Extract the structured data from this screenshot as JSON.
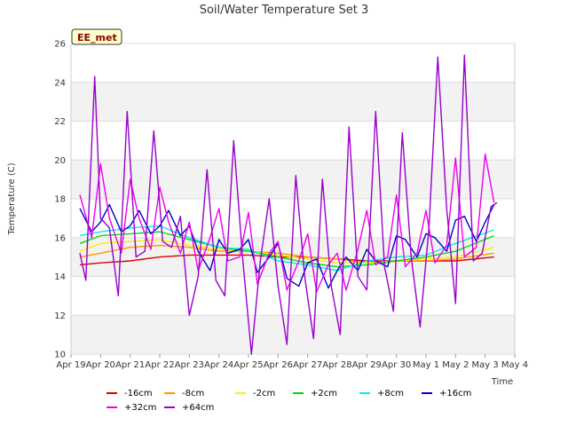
{
  "chart_data": {
    "type": "line",
    "title": "Soil/Water Temperature Set 3",
    "xlabel": "Time",
    "ylabel": "Temperature (C)",
    "badge": "EE_met",
    "ylim": [
      10,
      26
    ],
    "yticks": [
      10,
      12,
      14,
      16,
      18,
      20,
      22,
      24,
      26
    ],
    "xlim": [
      0,
      15
    ],
    "xticks": [
      {
        "x": 0,
        "label": "Apr 19"
      },
      {
        "x": 1,
        "label": "Apr 20"
      },
      {
        "x": 2,
        "label": "Apr 21"
      },
      {
        "x": 3,
        "label": "Apr 22"
      },
      {
        "x": 4,
        "label": "Apr 23"
      },
      {
        "x": 5,
        "label": "Apr 24"
      },
      {
        "x": 6,
        "label": "Apr 25"
      },
      {
        "x": 7,
        "label": "Apr 26"
      },
      {
        "x": 8,
        "label": "Apr 27"
      },
      {
        "x": 9,
        "label": "Apr 28"
      },
      {
        "x": 10,
        "label": "Apr 29"
      },
      {
        "x": 11,
        "label": "Apr 30"
      },
      {
        "x": 12,
        "label": "May 1"
      },
      {
        "x": 13,
        "label": "May 2"
      },
      {
        "x": 14,
        "label": "May 3"
      },
      {
        "x": 15,
        "label": "May 4"
      }
    ],
    "grid": "horizontal bands",
    "legend_position": "bottom",
    "series": [
      {
        "name": "-16cm",
        "color": "#dd0000",
        "x": [
          0.3,
          1,
          2,
          3,
          4,
          5,
          6,
          7,
          8,
          9,
          10,
          11,
          12,
          13,
          14.3
        ],
        "y": [
          14.6,
          14.7,
          14.8,
          15.0,
          15.1,
          15.1,
          15.1,
          15.0,
          15.0,
          14.9,
          14.8,
          14.8,
          14.8,
          14.8,
          15.0
        ]
      },
      {
        "name": "-8cm",
        "color": "#ff9900",
        "x": [
          0.3,
          1,
          2,
          3,
          4,
          5,
          6,
          7,
          8,
          9,
          10,
          11,
          12,
          13,
          14.3
        ],
        "y": [
          15.0,
          15.2,
          15.5,
          15.6,
          15.5,
          15.3,
          15.3,
          15.2,
          15.0,
          14.9,
          14.7,
          14.8,
          14.8,
          14.9,
          15.2
        ]
      },
      {
        "name": "-2cm",
        "color": "#ffee00",
        "x": [
          0.3,
          1,
          2,
          3,
          4,
          5,
          6,
          7,
          8,
          9,
          10,
          11,
          12,
          13,
          14.3
        ],
        "y": [
          15.3,
          15.7,
          15.8,
          15.9,
          15.6,
          15.4,
          15.3,
          15.1,
          14.9,
          14.7,
          14.7,
          14.8,
          14.9,
          15.0,
          15.5
        ]
      },
      {
        "name": "+2cm",
        "color": "#00dd00",
        "x": [
          0.3,
          1,
          2,
          3,
          4,
          5,
          6,
          7,
          8,
          9,
          10,
          11,
          12,
          13,
          14.3
        ],
        "y": [
          15.7,
          16.1,
          16.2,
          16.3,
          15.9,
          15.5,
          15.3,
          15.0,
          14.7,
          14.5,
          14.6,
          14.8,
          15.0,
          15.3,
          16.1
        ]
      },
      {
        "name": "+8cm",
        "color": "#00eeee",
        "x": [
          0.3,
          1,
          2,
          3,
          4,
          5,
          6,
          7,
          8,
          9,
          10,
          11,
          12,
          13,
          14.3
        ],
        "y": [
          16.1,
          16.3,
          16.5,
          16.6,
          16.0,
          15.5,
          15.4,
          14.8,
          14.6,
          14.3,
          14.8,
          15.0,
          15.1,
          15.7,
          16.4
        ]
      },
      {
        "name": "+16cm",
        "color": "#0000cc",
        "x": [
          0.3,
          0.7,
          1.0,
          1.3,
          1.7,
          2.0,
          2.3,
          2.7,
          3.0,
          3.3,
          3.7,
          4.0,
          4.3,
          4.7,
          5.0,
          5.3,
          5.7,
          6.0,
          6.3,
          6.7,
          7.0,
          7.3,
          7.7,
          8.0,
          8.3,
          8.7,
          9.0,
          9.3,
          9.7,
          10.0,
          10.3,
          10.7,
          11.0,
          11.3,
          11.7,
          12.0,
          12.3,
          12.7,
          13.0,
          13.3,
          13.7,
          14.0,
          14.3
        ],
        "y": [
          17.5,
          16.3,
          16.8,
          17.7,
          16.3,
          16.6,
          17.4,
          16.2,
          16.6,
          17.4,
          16.1,
          16.6,
          15.3,
          14.3,
          15.9,
          15.2,
          15.4,
          15.9,
          14.2,
          15.0,
          15.7,
          13.9,
          13.5,
          14.7,
          14.9,
          13.4,
          14.3,
          15.0,
          14.3,
          15.4,
          14.8,
          14.5,
          16.1,
          15.9,
          15.0,
          16.2,
          16.0,
          15.3,
          16.9,
          17.1,
          15.8,
          16.8,
          17.7
        ]
      },
      {
        "name": "+32cm",
        "color": "#ee00ee",
        "x": [
          0.3,
          0.7,
          1.0,
          1.3,
          1.7,
          2.0,
          2.3,
          2.7,
          3.0,
          3.3,
          3.7,
          4.0,
          4.3,
          4.7,
          5.0,
          5.3,
          5.7,
          6.0,
          6.3,
          6.7,
          7.0,
          7.3,
          7.7,
          8.0,
          8.3,
          8.7,
          9.0,
          9.3,
          9.7,
          10.0,
          10.3,
          10.7,
          11.0,
          11.3,
          11.7,
          12.0,
          12.3,
          12.7,
          13.0,
          13.3,
          13.7,
          14.0,
          14.3
        ],
        "y": [
          18.2,
          16.0,
          19.8,
          17.0,
          15.2,
          19.0,
          17.0,
          15.4,
          18.6,
          16.8,
          15.2,
          16.8,
          14.3,
          16.0,
          17.5,
          14.8,
          15.0,
          17.3,
          13.6,
          15.2,
          15.8,
          13.3,
          14.8,
          16.2,
          13.2,
          14.6,
          15.2,
          13.3,
          15.4,
          17.4,
          14.6,
          15.0,
          18.2,
          14.5,
          15.2,
          17.4,
          14.7,
          15.6,
          20.1,
          15.0,
          15.5,
          20.3,
          17.8
        ]
      },
      {
        "name": "+64cm",
        "color": "#9900cc",
        "x": [
          0.3,
          0.5,
          0.8,
          1.0,
          1.3,
          1.6,
          1.9,
          2.2,
          2.5,
          2.8,
          3.1,
          3.4,
          3.7,
          4.0,
          4.3,
          4.6,
          4.9,
          5.2,
          5.5,
          5.8,
          6.1,
          6.4,
          6.7,
          7.0,
          7.3,
          7.6,
          7.9,
          8.2,
          8.5,
          8.8,
          9.1,
          9.4,
          9.7,
          10.0,
          10.3,
          10.6,
          10.9,
          11.2,
          11.5,
          11.8,
          12.1,
          12.4,
          12.7,
          13.0,
          13.3,
          13.6,
          13.9,
          14.2,
          14.4
        ],
        "y": [
          15.2,
          13.8,
          24.3,
          17.0,
          16.5,
          13.0,
          22.5,
          15.0,
          15.3,
          21.5,
          15.8,
          15.5,
          17.1,
          12.0,
          14.0,
          19.5,
          13.8,
          13.0,
          21.0,
          15.0,
          10.0,
          14.8,
          18.0,
          13.5,
          10.5,
          19.2,
          14.0,
          10.8,
          19.0,
          13.5,
          11.0,
          21.7,
          14.0,
          13.3,
          22.5,
          14.5,
          12.2,
          21.4,
          15.0,
          11.4,
          16.5,
          25.3,
          17.5,
          12.6,
          25.4,
          14.8,
          15.2,
          17.6,
          17.8
        ]
      }
    ]
  }
}
